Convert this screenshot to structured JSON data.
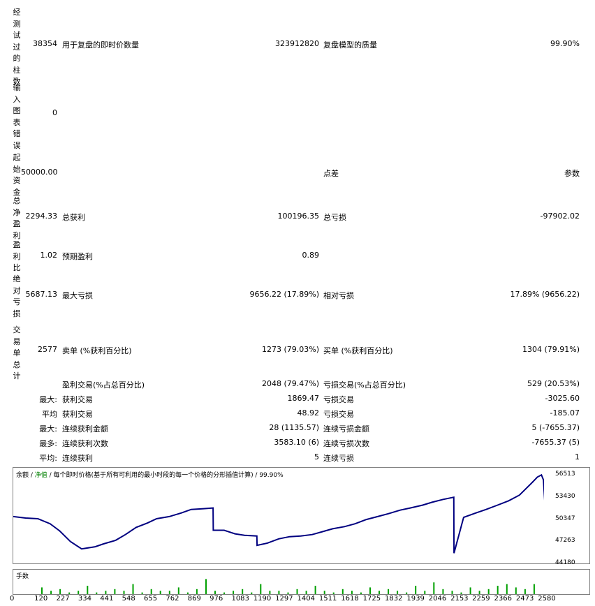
{
  "left_labels": {
    "bars_tested": "经测试过的柱数",
    "chart_errors": "输入图表错误",
    "initial_deposit": "起始资金",
    "net_profit": "总净盈利",
    "profit_factor": "盈利比",
    "abs_drawdown": "绝对亏损",
    "total_trades": "交易单总计"
  },
  "rows": {
    "r1": {
      "v1": "38354",
      "l2": "用于复盘的即时价数量",
      "v2": "323912820",
      "l3": "复盘模型的质量",
      "v3": "99.90%"
    },
    "r2": {
      "v1": "0"
    },
    "r3": {
      "v1": "50000.00",
      "l3": "点差",
      "v3": "参数"
    },
    "r4": {
      "v1": "2294.33",
      "l2": "总获利",
      "v2": "100196.35",
      "l3": "总亏损",
      "v3": "-97902.02"
    },
    "r5": {
      "v1": "1.02",
      "l2": "预期盈利",
      "v2": "0.89"
    },
    "r6": {
      "v1": "5687.13",
      "l2": "最大亏损",
      "v2": "9656.22 (17.89%)",
      "l3": "相对亏损",
      "v3": "17.89% (9656.22)"
    },
    "r7": {
      "v1": "2577",
      "l2": "卖单 (%获利百分比)",
      "v2": "1273 (79.03%)",
      "l3": "买单 (%获利百分比)",
      "v3": "1304 (79.91%)"
    },
    "r8": {
      "l2": "盈利交易(%占总百分比)",
      "v2": "2048 (79.47%)",
      "l3": "亏损交易(%占总百分比)",
      "v3": "529 (20.53%)"
    },
    "r9": {
      "p": "最大:",
      "l2": "获利交易",
      "v2": "1869.47",
      "l3": "亏损交易",
      "v3": "-3025.60"
    },
    "r10": {
      "p": "平均",
      "l2": "获利交易",
      "v2": "48.92",
      "l3": "亏损交易",
      "v3": "-185.07"
    },
    "r11": {
      "p": "最大:",
      "l2": "连续获利金额",
      "v2": "28 (1135.57)",
      "l3": "连续亏损金额",
      "v3": "5 (-7655.37)"
    },
    "r12": {
      "p": "最多:",
      "l2": "连续获利次数",
      "v2": "3583.10 (6)",
      "l3": "连续亏损次数",
      "v3": "-7655.37 (5)"
    },
    "r13": {
      "p": "平均:",
      "l2": "连续获利",
      "v2": "5",
      "l3": "连续亏损",
      "v3": "1"
    }
  },
  "chart": {
    "legend_balance": "余额",
    "legend_sep1": " / ",
    "legend_equity": "净值",
    "legend_rest": " / 每个即时价格(基于所有可利用的最小时段的每一个价格的分形插值计算) / 99.90%",
    "volume_label": "手数",
    "y_ticks": [
      "56513",
      "53430",
      "50347",
      "47263",
      "44180"
    ],
    "x_ticks": [
      "0",
      "120",
      "227",
      "334",
      "441",
      "548",
      "655",
      "762",
      "869",
      "976",
      "1083",
      "1190",
      "1297",
      "1404",
      "1511",
      "1618",
      "1725",
      "1832",
      "1939",
      "2046",
      "2153",
      "2259",
      "2366",
      "2473",
      "2580"
    ],
    "line_color": "#000080",
    "volume_color": "#00a000"
  },
  "chart_data": {
    "type": "line",
    "title": "",
    "xlabel": "",
    "ylabel": "",
    "ylim": [
      44180,
      57500
    ],
    "x": [
      0,
      60,
      120,
      180,
      227,
      280,
      334,
      400,
      441,
      500,
      548,
      600,
      655,
      700,
      762,
      820,
      869,
      930,
      976,
      977,
      1030,
      1083,
      1130,
      1190,
      1191,
      1240,
      1297,
      1350,
      1404,
      1460,
      1511,
      1560,
      1618,
      1670,
      1725,
      1780,
      1832,
      1890,
      1939,
      2000,
      2046,
      2100,
      2152,
      2153,
      2200,
      2259,
      2310,
      2366,
      2420,
      2473,
      2530,
      2560,
      2580,
      2590,
      2600
    ],
    "series": [
      {
        "values": [
          50700,
          50500,
          50400,
          49700,
          48700,
          47200,
          46200,
          46500,
          46900,
          47400,
          48200,
          49200,
          49800,
          50400,
          50700,
          51200,
          51700,
          51800,
          51900,
          48800,
          48800,
          48300,
          48100,
          48000,
          46700,
          47000,
          47600,
          47900,
          48000,
          48200,
          48600,
          49000,
          49300,
          49700,
          50300,
          50700,
          51100,
          51600,
          51900,
          52300,
          52700,
          53100,
          53400,
          45600,
          50600,
          51200,
          51700,
          52300,
          52900,
          53700,
          55300,
          56200,
          56500,
          55800,
          51200
        ]
      }
    ],
    "volume_values": [
      4,
      2,
      3,
      1,
      2,
      5,
      1,
      2,
      3,
      2,
      6,
      1,
      3,
      2,
      2,
      4,
      1,
      3,
      9,
      2,
      1,
      2,
      3,
      1,
      6,
      2,
      2,
      1,
      3,
      2,
      5,
      2,
      1,
      3,
      2,
      1,
      4,
      2,
      3,
      2,
      1,
      5,
      2,
      7,
      3,
      2,
      1,
      4,
      2,
      3,
      5,
      6,
      4,
      3,
      6
    ]
  }
}
